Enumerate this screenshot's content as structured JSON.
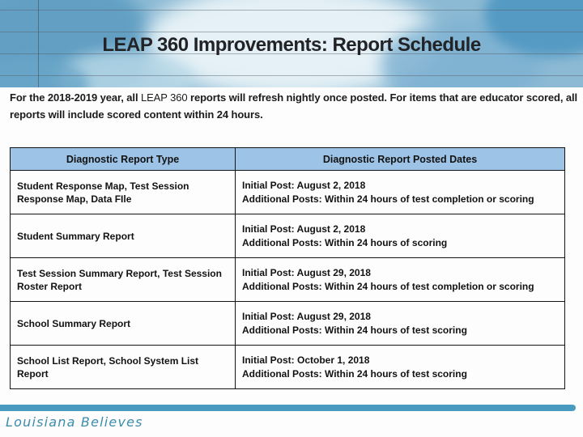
{
  "header": {
    "title": "LEAP 360 Improvements: Report Schedule"
  },
  "intro": {
    "part1": "For the 2018-2019 year, all ",
    "highlight": "LEAP 360",
    "part2": " reports will refresh nightly once posted. For items that are educator scored, all reports will include scored content within 24 hours."
  },
  "table": {
    "headers": [
      "Diagnostic Report Type",
      "Diagnostic Report Posted Dates"
    ],
    "rows": [
      {
        "type": "Student Response Map, Test Session Response Map, Data FIle",
        "initial": "Initial Post: August 2, 2018",
        "additional": "Additional Posts: Within 24 hours of test completion or scoring"
      },
      {
        "type": "Student Summary Report",
        "initial": "Initial Post: August 2, 2018",
        "additional": "Additional Posts: Within 24 hours of scoring"
      },
      {
        "type": "Test Session Summary Report, Test Session Roster Report",
        "initial": "Initial Post: August 29, 2018",
        "additional": "Additional Posts: Within 24 hours of test completion or scoring"
      },
      {
        "type": "School Summary Report",
        "initial": "Initial Post: August 29, 2018",
        "additional": "Additional Posts: Within 24 hours of test scoring"
      },
      {
        "type": "School List Report, School System List Report",
        "initial": "Initial Post: October 1, 2018",
        "additional": "Additional Posts: Within 24 hours of test scoring"
      }
    ]
  },
  "footer": {
    "logo_text": "Louisiana Believes"
  },
  "colors": {
    "table_header_bg": "#9DC3E6",
    "table_border": "#141414",
    "header_watercolor_base": "#8CBAD4",
    "footer_bar": "#4A9BC0",
    "logo_teal": "#3C8CAA",
    "body_text": "#1B1B1B"
  }
}
